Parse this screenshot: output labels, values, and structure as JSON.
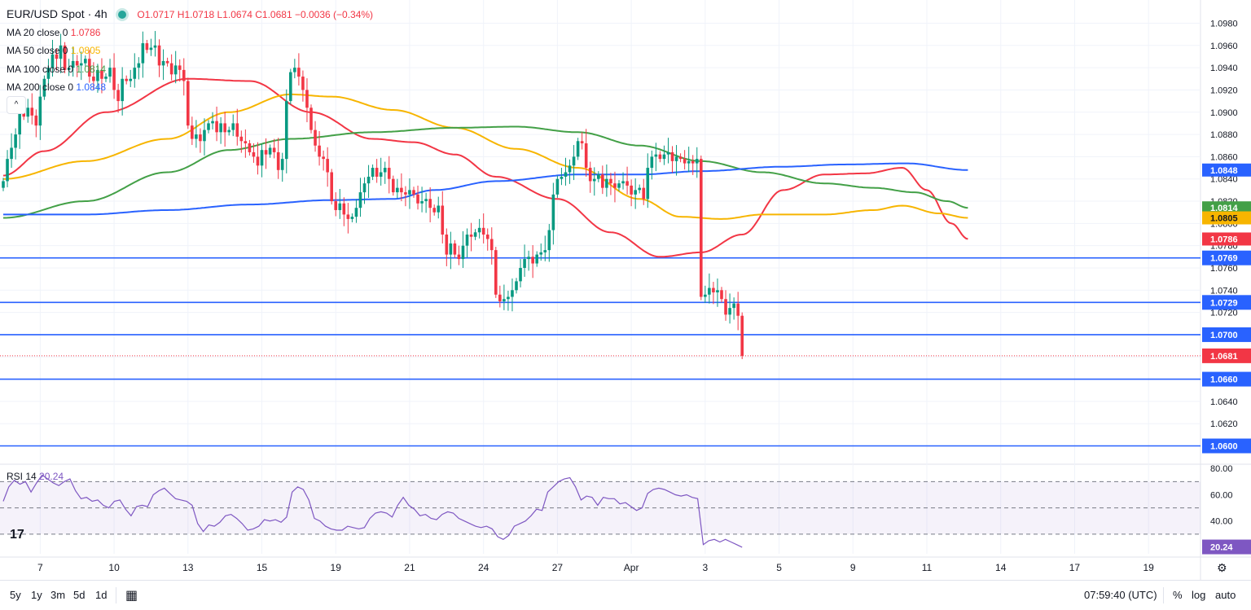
{
  "legend": {
    "symbol": "EUR/USD Spot · 4h",
    "ohlc": {
      "o": "O1.0717",
      "h": "H1.0718",
      "l": "L1.0674",
      "c": "C1.0681",
      "chg": "−0.0036 (−0.34%)"
    },
    "ma": [
      {
        "label": "MA 20 close 0",
        "value": "1.0786",
        "color": "#f23645"
      },
      {
        "label": "MA 50 close 0",
        "value": "1.0805",
        "color": "#f7b500"
      },
      {
        "label": "MA 100 close 0",
        "value": "1.0814",
        "color": "#43a047"
      },
      {
        "label": "MA 200 close 0",
        "value": "1.0848",
        "color": "#2962ff"
      }
    ],
    "collapse_glyph": "^"
  },
  "rsi_legend": {
    "label": "RSI 14",
    "value": "20.24",
    "color": "#7e57c2"
  },
  "logo_text": "17",
  "chart_data": [
    {
      "type": "candlestick",
      "title": "EUR/USD Spot · 4h",
      "ylim": [
        1.0585,
        1.0995
      ],
      "price_ticks": [
        "1.0980",
        "1.0960",
        "1.0940",
        "1.0920",
        "1.0900",
        "1.0880",
        "1.0860",
        "1.0840",
        "1.0820",
        "1.0800",
        "1.0780",
        "1.0760",
        "1.0740",
        "1.0720",
        "1.0700",
        "1.0680",
        "1.0660",
        "1.0640",
        "1.0620",
        "1.0600"
      ],
      "x_ticks": [
        {
          "label": "7",
          "bar": 9
        },
        {
          "label": "10",
          "bar": 27
        },
        {
          "label": "13",
          "bar": 45
        },
        {
          "label": "15",
          "bar": 63
        },
        {
          "label": "19",
          "bar": 81
        },
        {
          "label": "21",
          "bar": 99
        },
        {
          "label": "24",
          "bar": 117
        },
        {
          "label": "27",
          "bar": 135
        },
        {
          "label": "Apr",
          "bar": 153
        },
        {
          "label": "3",
          "bar": 171
        },
        {
          "label": "5",
          "bar": 189
        },
        {
          "label": "9",
          "bar": 207
        },
        {
          "label": "11",
          "bar": 225
        },
        {
          "label": "14",
          "bar": 243
        },
        {
          "label": "17",
          "bar": 261
        },
        {
          "label": "19",
          "bar": 279
        }
      ],
      "closes": [
        1.0838,
        1.0858,
        1.0868,
        1.088,
        1.0902,
        1.0896,
        1.0904,
        1.0897,
        1.0888,
        1.0914,
        1.093,
        1.094,
        1.0952,
        1.0948,
        1.096,
        1.0938,
        1.094,
        1.0946,
        1.0942,
        1.0944,
        1.0948,
        1.0932,
        1.0928,
        1.0938,
        1.093,
        1.0932,
        1.094,
        1.092,
        1.091,
        1.093,
        1.0928,
        1.093,
        1.094,
        1.0944,
        1.0962,
        1.0956,
        1.0958,
        1.096,
        1.0942,
        1.0946,
        1.0944,
        1.0934,
        1.0942,
        1.0938,
        1.0928,
        1.0888,
        1.0876,
        1.088,
        1.0874,
        1.0884,
        1.089,
        1.0892,
        1.0882,
        1.089,
        1.0882,
        1.0884,
        1.089,
        1.0878,
        1.0874,
        1.0872,
        1.0864,
        1.086,
        1.0852,
        1.0866,
        1.0862,
        1.0868,
        1.0864,
        1.0848,
        1.0858,
        1.091,
        1.0936,
        1.094,
        1.0932,
        1.092,
        1.0904,
        1.0884,
        1.087,
        1.086,
        1.0858,
        1.0846,
        1.082,
        1.0812,
        1.0818,
        1.0808,
        1.0804,
        1.0806,
        1.0814,
        1.0828,
        1.0836,
        1.0842,
        1.085,
        1.0842,
        1.0846,
        1.085,
        1.084,
        1.0828,
        1.0832,
        1.0828,
        1.0826,
        1.083,
        1.0826,
        1.0818,
        1.082,
        1.0822,
        1.0814,
        1.081,
        1.0816,
        1.079,
        1.0772,
        1.0782,
        1.0772,
        1.0768,
        1.078,
        1.079,
        1.0788,
        1.0792,
        1.0796,
        1.079,
        1.0786,
        1.0776,
        1.0736,
        1.073,
        1.0732,
        1.0734,
        1.074,
        1.0748,
        1.076,
        1.0768,
        1.077,
        1.0764,
        1.0772,
        1.0774,
        1.0776,
        1.0794,
        1.0826,
        1.084,
        1.0842,
        1.0846,
        1.0852,
        1.086,
        1.0874,
        1.0872,
        1.085,
        1.0838,
        1.084,
        1.0844,
        1.0832,
        1.084,
        1.0836,
        1.0832,
        1.0836,
        1.0838,
        1.0834,
        1.0826,
        1.083,
        1.0832,
        1.0822,
        1.085,
        1.086,
        1.0862,
        1.0858,
        1.0862,
        1.0864,
        1.0856,
        1.086,
        1.0858,
        1.0854,
        1.0856,
        1.0854,
        1.0858,
        1.0734,
        1.0736,
        1.0742,
        1.0738,
        1.074,
        1.0732,
        1.0718,
        1.0724,
        1.0728,
        1.0717,
        1.0681
      ],
      "hlines": [
        {
          "price": 1.0769,
          "label": "1.0769",
          "color": "#2962ff",
          "style": "solid"
        },
        {
          "price": 1.0729,
          "label": "1.0729",
          "color": "#2962ff",
          "style": "solid"
        },
        {
          "price": 1.07,
          "label": "1.0700",
          "color": "#2962ff",
          "style": "solid"
        },
        {
          "price": 1.066,
          "label": "1.0660",
          "color": "#2962ff",
          "style": "solid"
        },
        {
          "price": 1.06,
          "label": "1.0600",
          "color": "#2962ff",
          "style": "solid"
        },
        {
          "price": 1.0681,
          "label": "1.0681",
          "color": "#f23645",
          "style": "dotted"
        }
      ],
      "ma_badges": [
        {
          "price": 1.0848,
          "label": "1.0848",
          "color": "#2962ff"
        },
        {
          "price": 1.0814,
          "label": "1.0814",
          "color": "#43a047"
        },
        {
          "price": 1.0805,
          "label": "1.0805",
          "color": "#f7b500"
        },
        {
          "price": 1.0786,
          "label": "1.0786",
          "color": "#f23645"
        }
      ],
      "ma_series": [
        {
          "name": "MA 20",
          "color": "#f23645",
          "values": [
            [
              0,
              1.0843
            ],
            [
              10,
              1.0865
            ],
            [
              25,
              1.09
            ],
            [
              45,
              1.093
            ],
            [
              60,
              1.0928
            ],
            [
              75,
              1.09
            ],
            [
              90,
              1.0876
            ],
            [
              100,
              1.0873
            ],
            [
              110,
              1.0862
            ],
            [
              120,
              1.0842
            ],
            [
              135,
              1.0822
            ],
            [
              148,
              1.0792
            ],
            [
              160,
              1.077
            ],
            [
              170,
              1.0774
            ],
            [
              180,
              1.079
            ],
            [
              190,
              1.083
            ],
            [
              200,
              1.0844
            ],
            [
              210,
              1.0845
            ],
            [
              219,
              1.085
            ],
            [
              225,
              1.083
            ],
            [
              231,
              1.08
            ],
            [
              235,
              1.0786
            ]
          ]
        },
        {
          "name": "MA 50",
          "color": "#f7b500",
          "values": [
            [
              0,
              1.084
            ],
            [
              20,
              1.0856
            ],
            [
              40,
              1.0876
            ],
            [
              55,
              1.09
            ],
            [
              70,
              1.0916
            ],
            [
              80,
              1.0914
            ],
            [
              95,
              1.0902
            ],
            [
              110,
              1.0886
            ],
            [
              125,
              1.0867
            ],
            [
              140,
              1.085
            ],
            [
              155,
              1.0822
            ],
            [
              165,
              1.0806
            ],
            [
              175,
              1.0804
            ],
            [
              185,
              1.0808
            ],
            [
              200,
              1.0808
            ],
            [
              212,
              1.0812
            ],
            [
              219,
              1.0816
            ],
            [
              228,
              1.0809
            ],
            [
              235,
              1.0805
            ]
          ]
        },
        {
          "name": "MA 100",
          "color": "#43a047",
          "values": [
            [
              0,
              1.0805
            ],
            [
              20,
              1.082
            ],
            [
              40,
              1.0846
            ],
            [
              55,
              1.0866
            ],
            [
              70,
              1.0876
            ],
            [
              90,
              1.0882
            ],
            [
              110,
              1.0886
            ],
            [
              125,
              1.0887
            ],
            [
              140,
              1.0882
            ],
            [
              155,
              1.087
            ],
            [
              170,
              1.0856
            ],
            [
              185,
              1.0846
            ],
            [
              200,
              1.0836
            ],
            [
              212,
              1.0832
            ],
            [
              222,
              1.0828
            ],
            [
              230,
              1.082
            ],
            [
              235,
              1.0814
            ]
          ]
        },
        {
          "name": "MA 200",
          "color": "#2962ff",
          "values": [
            [
              0,
              1.0808
            ],
            [
              20,
              1.0808
            ],
            [
              40,
              1.0812
            ],
            [
              60,
              1.0817
            ],
            [
              80,
              1.0821
            ],
            [
              95,
              1.0822
            ],
            [
              105,
              1.083
            ],
            [
              120,
              1.0838
            ],
            [
              140,
              1.0844
            ],
            [
              155,
              1.0844
            ],
            [
              170,
              1.0847
            ],
            [
              190,
              1.0851
            ],
            [
              205,
              1.0853
            ],
            [
              220,
              1.0854
            ],
            [
              235,
              1.0848
            ]
          ]
        }
      ]
    },
    {
      "type": "line",
      "title": "RSI 14",
      "ylim": [
        15,
        82
      ],
      "ticks": [
        "80.00",
        "60.00",
        "40.00"
      ],
      "levels": [
        70,
        50,
        30
      ],
      "last": {
        "value": 20.24,
        "label": "20.24"
      },
      "values": [
        55,
        66,
        71,
        68,
        70,
        62,
        69,
        75,
        72,
        69,
        67,
        70,
        72,
        63,
        57,
        58,
        55,
        56,
        52,
        50,
        55,
        56,
        49,
        44,
        51,
        52,
        51,
        60,
        63,
        65,
        61,
        57,
        56,
        55,
        52,
        38,
        32,
        37,
        36,
        39,
        44,
        45,
        42,
        38,
        33,
        34,
        36,
        41,
        40,
        41,
        39,
        43,
        62,
        66,
        64,
        56,
        42,
        40,
        36,
        34,
        33,
        33,
        36,
        35,
        34,
        35,
        42,
        46,
        47,
        46,
        43,
        52,
        58,
        52,
        49,
        44,
        45,
        42,
        41,
        45,
        47,
        46,
        42,
        40,
        38,
        36,
        35,
        36,
        34,
        28,
        26,
        29,
        36,
        38,
        40,
        44,
        49,
        48,
        62,
        66,
        70,
        72,
        73,
        66,
        56,
        59,
        58,
        52,
        58,
        57,
        57,
        53,
        54,
        51,
        48,
        50,
        61,
        64,
        65,
        64,
        62,
        60,
        59,
        60,
        58,
        57,
        22,
        25,
        26,
        24,
        26,
        24,
        22,
        20
      ]
    }
  ],
  "bottom_bar": {
    "ranges": [
      "5y",
      "1y",
      "3m",
      "5d",
      "1d"
    ],
    "calendar_glyph": "▦",
    "time": "07:59:40 (UTC)",
    "percent": "%",
    "log": "log",
    "auto": "auto",
    "settings_glyph": "⚙"
  }
}
